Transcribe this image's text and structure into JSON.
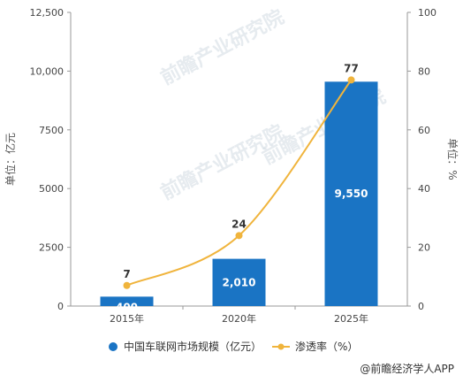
{
  "chart_data": {
    "type": "bar",
    "categories": [
      "2015年",
      "2020年",
      "2025年"
    ],
    "series": [
      {
        "name": "中国车联网市场规模（亿元）",
        "type": "bar",
        "axis": "left",
        "color": "#1a74c4",
        "values": [
          400,
          2010,
          9550
        ],
        "data_labels": [
          "400",
          "2,010",
          "9,550"
        ]
      },
      {
        "name": "渗透率（%）",
        "type": "line",
        "axis": "right",
        "color": "#f0b43c",
        "values": [
          7,
          24,
          77
        ],
        "data_labels": [
          "7",
          "24",
          "77"
        ]
      }
    ],
    "ylabel_left": "单位：亿元",
    "ylabel_right": "单位：%",
    "ylim_left": [
      0,
      12500
    ],
    "yticks_left": [
      "0",
      "2500",
      "5000",
      "7500",
      "10,000",
      "12,500"
    ],
    "ylim_right": [
      0,
      100
    ],
    "yticks_right": [
      "0",
      "20",
      "40",
      "60",
      "80",
      "100"
    ],
    "grid": false,
    "legend": {
      "position": "bottom"
    }
  },
  "watermark": "前瞻产业研究院",
  "source": "@前瞻经济学人APP"
}
